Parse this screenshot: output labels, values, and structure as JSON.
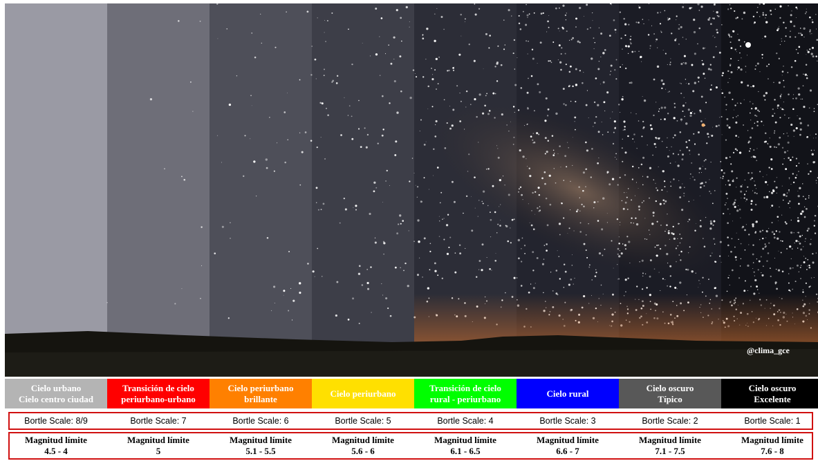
{
  "credit": "@clima_gce",
  "columns": [
    {
      "label": [
        "Cielo urbano",
        "Cielo centro ciudad"
      ],
      "color": "#b4b4b4",
      "bortle": "Bortle Scale: 8/9",
      "magnitude": [
        "Magnitud límite",
        "4.5 - 4"
      ]
    },
    {
      "label": [
        "Transición de cielo",
        "periurbano-urbano"
      ],
      "color": "#ff0000",
      "bortle": "Bortle Scale: 7",
      "magnitude": [
        "Magnitud límite",
        "5"
      ]
    },
    {
      "label": [
        "Cielo periurbano",
        "brillante"
      ],
      "color": "#ff8000",
      "bortle": "Bortle Scale: 6",
      "magnitude": [
        "Magnitud límite",
        "5.1 - 5.5"
      ]
    },
    {
      "label": [
        "Cielo periurbano"
      ],
      "color": "#ffe000",
      "bortle": "Bortle Scale: 5",
      "magnitude": [
        "Magnitud límite",
        "5.6 - 6"
      ]
    },
    {
      "label": [
        "Transición de cielo",
        "rural - periurbano"
      ],
      "color": "#00ff00",
      "bortle": "Bortle Scale: 4",
      "magnitude": [
        "Magnitud límite",
        "6.1 - 6.5"
      ]
    },
    {
      "label": [
        "Cielo rural"
      ],
      "color": "#0000ff",
      "bortle": "Bortle Scale: 3",
      "magnitude": [
        "Magnitud límite",
        "6.6 - 7"
      ]
    },
    {
      "label": [
        "Cielo oscuro",
        "Típico"
      ],
      "color": "#585858",
      "bortle": "Bortle Scale: 2",
      "magnitude": [
        "Magnitud límite",
        "7.1 - 7.5"
      ]
    },
    {
      "label": [
        "Cielo oscuro",
        "Excelente"
      ],
      "color": "#000000",
      "bortle": "Bortle Scale: 1",
      "magnitude": [
        "Magnitud límite",
        "7.6 - 8"
      ]
    }
  ]
}
